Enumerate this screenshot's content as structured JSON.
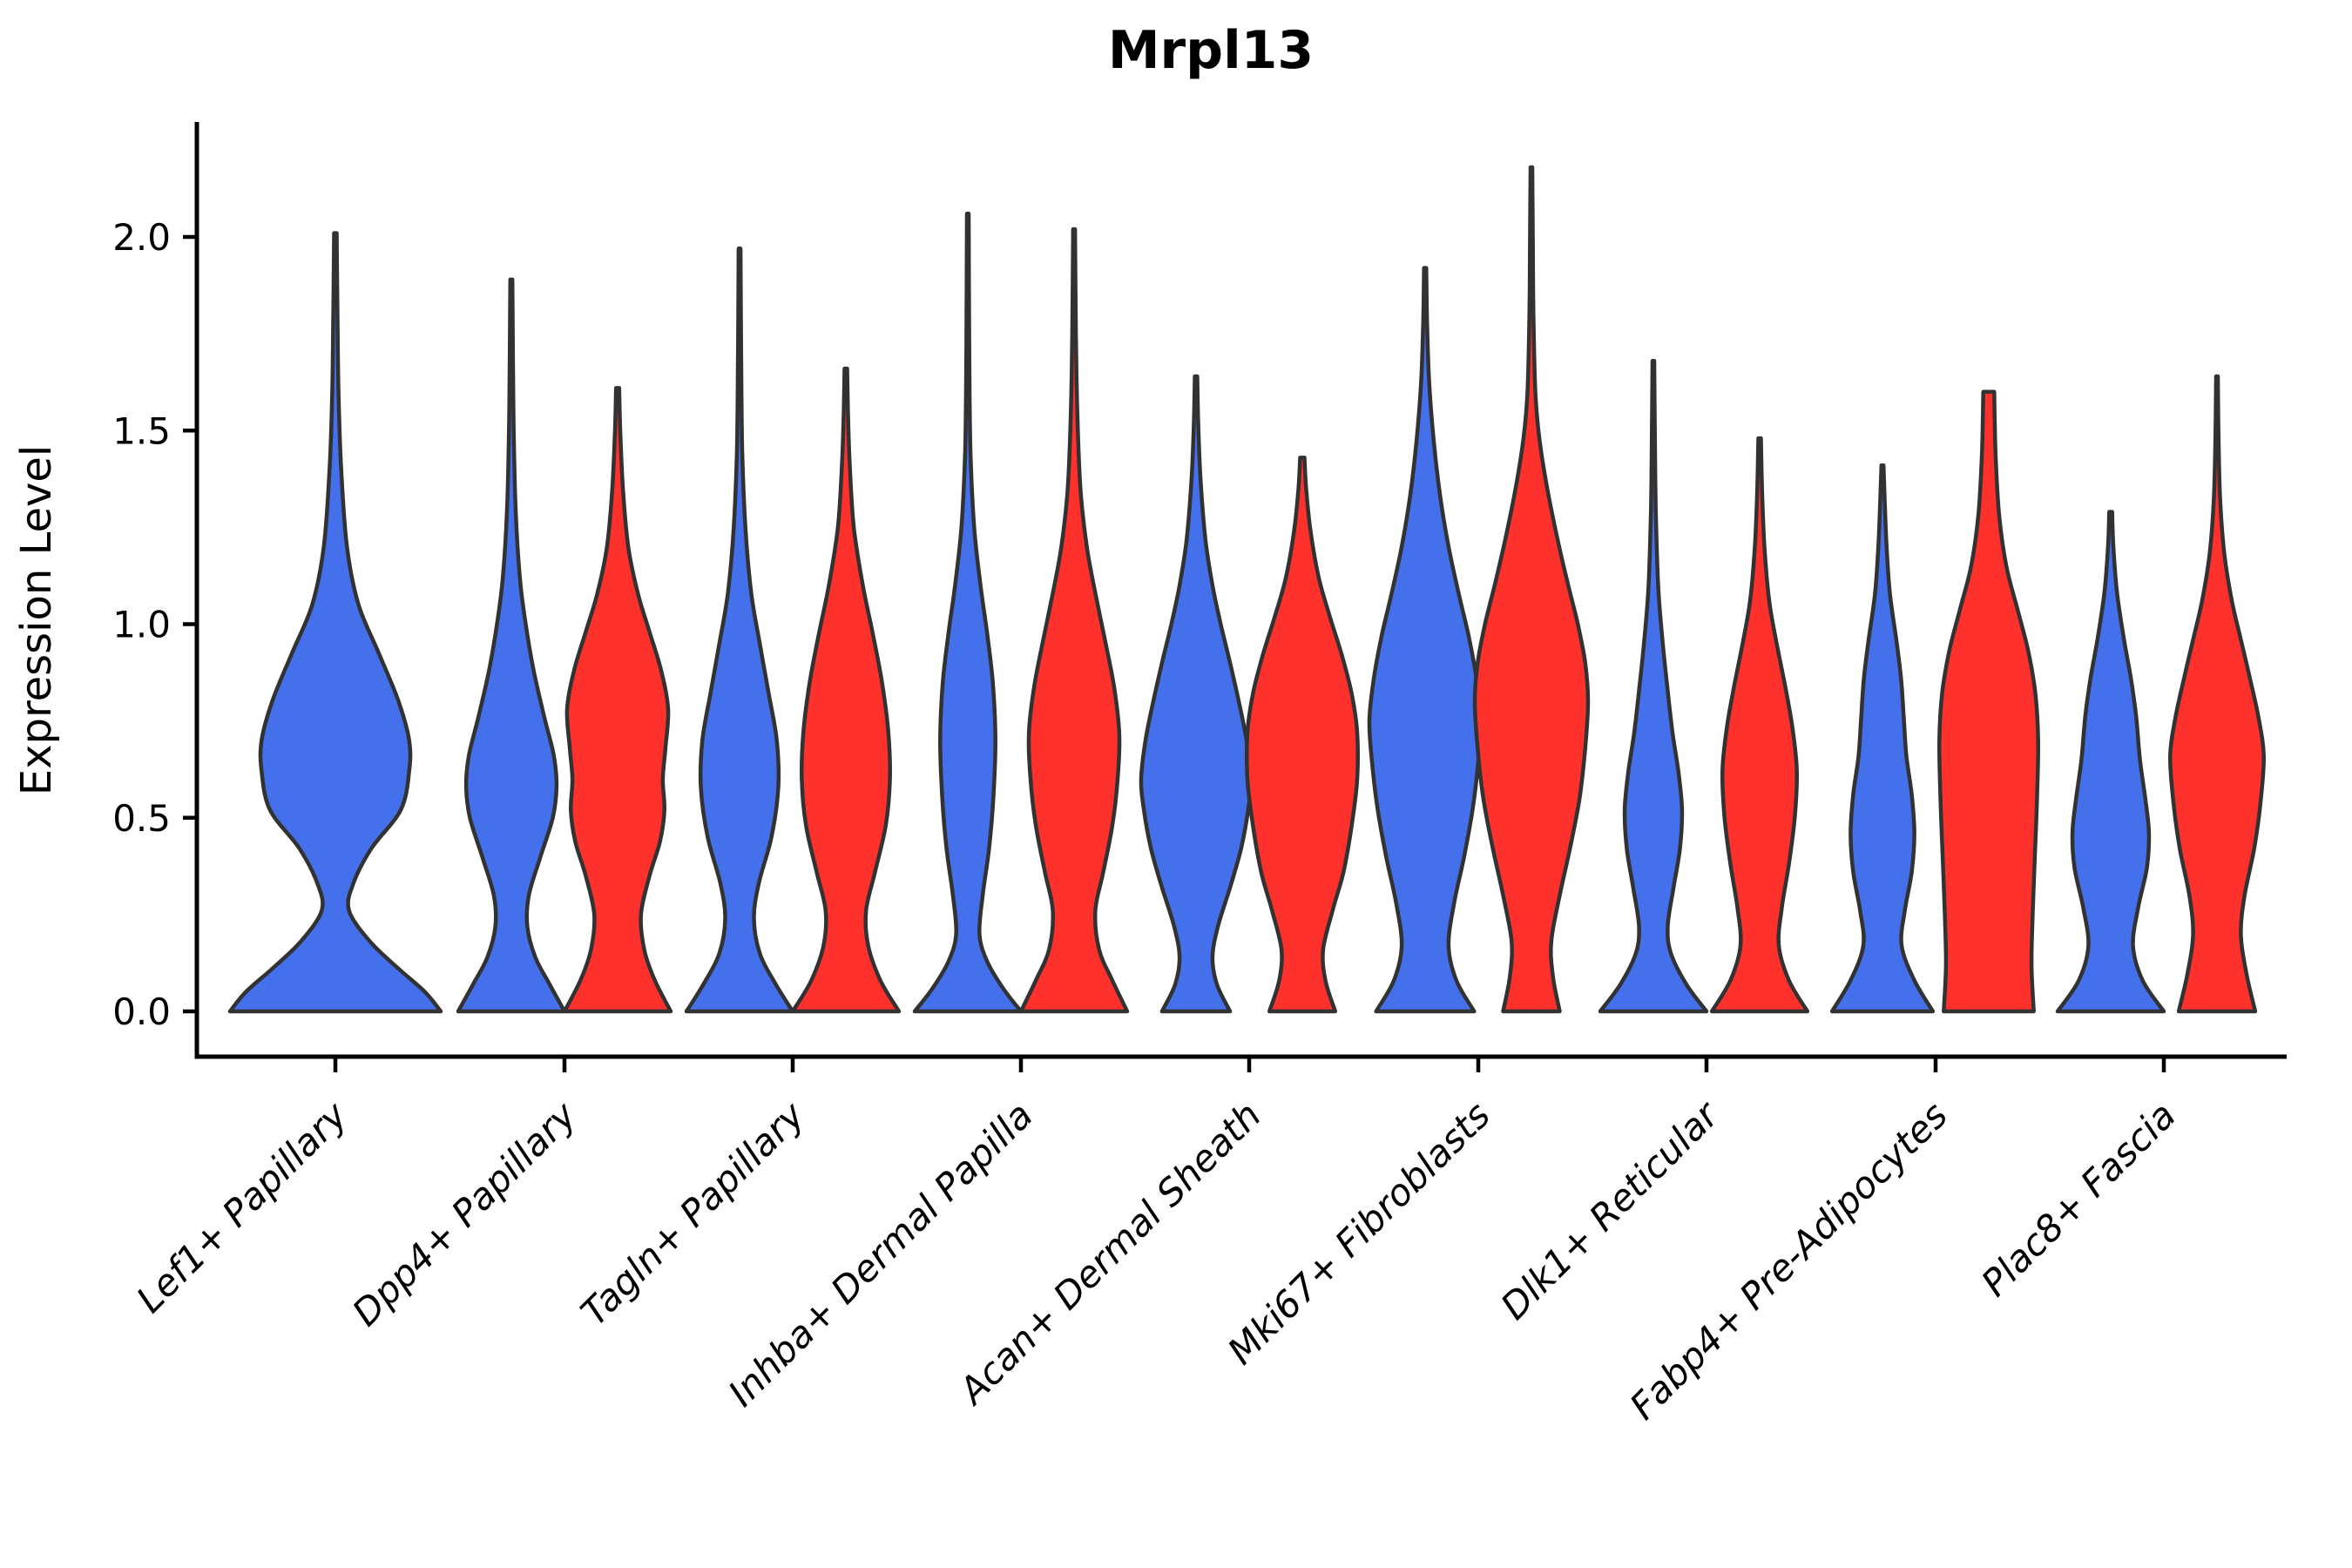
{
  "title": "Mrpl13",
  "axes": {
    "ylabel": "Expression Level",
    "ytick_labels": [
      "0.0",
      "0.5",
      "1.0",
      "1.5",
      "2.0"
    ]
  },
  "colors": {
    "series_blue": "#4470EB",
    "series_red": "#FF312D",
    "violin_outline": "#323232",
    "axis_line": "#000000",
    "text": "#000000",
    "background": "#ffffff"
  },
  "chart_data": {
    "type": "violin",
    "title": "Mrpl13",
    "xlabel": "",
    "ylabel": "Expression Level",
    "ylim": [
      0,
      2.3
    ],
    "yticks": [
      0.0,
      0.5,
      1.0,
      1.5,
      2.0
    ],
    "grid": false,
    "legend": "none",
    "categories": [
      "Lef1+ Papillary",
      "Dpp4+ Papillary",
      "Tagln+ Papillary",
      "Inhba+ Dermal Papilla",
      "Acan+ Dermal Sheath",
      "Mki67+ Fibroblasts",
      "Dlk1+ Reticular",
      "Fabp4+ Pre-Adipocytes",
      "Plac8+ Fascia"
    ],
    "series": [
      {
        "name": "group-blue",
        "color": "#4470EB"
      },
      {
        "name": "group-red",
        "color": "#FF312D"
      }
    ],
    "violins": [
      {
        "category_index": 0,
        "series": 0,
        "solo": true,
        "peak_expression": 2.01,
        "hw": 121,
        "profile": [
          [
            0,
            1.0
          ],
          [
            0.05,
            0.85
          ],
          [
            0.11,
            0.6
          ],
          [
            0.18,
            0.33
          ],
          [
            0.26,
            0.13
          ],
          [
            0.33,
            0.17
          ],
          [
            0.42,
            0.34
          ],
          [
            0.52,
            0.62
          ],
          [
            0.62,
            0.7
          ],
          [
            0.7,
            0.7
          ],
          [
            0.8,
            0.6
          ],
          [
            0.92,
            0.42
          ],
          [
            1.05,
            0.22
          ],
          [
            1.2,
            0.11
          ],
          [
            1.4,
            0.055
          ],
          [
            1.6,
            0.03
          ],
          [
            1.8,
            0.02
          ],
          [
            2.01,
            0.012
          ]
        ]
      },
      {
        "category_index": 1,
        "series": 0,
        "solo": false,
        "peak_expression": 1.89,
        "hw": 61,
        "profile": [
          [
            0,
            1.0
          ],
          [
            0.07,
            0.72
          ],
          [
            0.14,
            0.45
          ],
          [
            0.22,
            0.3
          ],
          [
            0.3,
            0.33
          ],
          [
            0.4,
            0.55
          ],
          [
            0.5,
            0.78
          ],
          [
            0.58,
            0.85
          ],
          [
            0.66,
            0.8
          ],
          [
            0.76,
            0.62
          ],
          [
            0.88,
            0.42
          ],
          [
            1.0,
            0.27
          ],
          [
            1.12,
            0.16
          ],
          [
            1.3,
            0.08
          ],
          [
            1.5,
            0.045
          ],
          [
            1.7,
            0.03
          ],
          [
            1.89,
            0.02
          ]
        ]
      },
      {
        "category_index": 1,
        "series": 1,
        "solo": false,
        "peak_expression": 1.61,
        "hw": 61,
        "profile": [
          [
            0,
            1.0
          ],
          [
            0.08,
            0.7
          ],
          [
            0.16,
            0.5
          ],
          [
            0.25,
            0.44
          ],
          [
            0.35,
            0.6
          ],
          [
            0.44,
            0.8
          ],
          [
            0.52,
            0.88
          ],
          [
            0.6,
            0.85
          ],
          [
            0.68,
            0.9
          ],
          [
            0.78,
            0.95
          ],
          [
            0.88,
            0.82
          ],
          [
            0.98,
            0.6
          ],
          [
            1.08,
            0.38
          ],
          [
            1.2,
            0.2
          ],
          [
            1.35,
            0.1
          ],
          [
            1.5,
            0.05
          ],
          [
            1.61,
            0.03
          ]
        ]
      },
      {
        "category_index": 2,
        "series": 0,
        "solo": false,
        "peak_expression": 1.97,
        "hw": 61,
        "profile": [
          [
            0,
            1.0
          ],
          [
            0.07,
            0.68
          ],
          [
            0.15,
            0.38
          ],
          [
            0.24,
            0.27
          ],
          [
            0.33,
            0.36
          ],
          [
            0.45,
            0.6
          ],
          [
            0.58,
            0.73
          ],
          [
            0.7,
            0.7
          ],
          [
            0.82,
            0.55
          ],
          [
            0.95,
            0.38
          ],
          [
            1.08,
            0.22
          ],
          [
            1.25,
            0.11
          ],
          [
            1.45,
            0.05
          ],
          [
            1.7,
            0.03
          ],
          [
            1.97,
            0.018
          ]
        ]
      },
      {
        "category_index": 2,
        "series": 1,
        "solo": false,
        "peak_expression": 1.66,
        "hw": 61,
        "profile": [
          [
            0,
            1.0
          ],
          [
            0.08,
            0.65
          ],
          [
            0.17,
            0.42
          ],
          [
            0.26,
            0.38
          ],
          [
            0.36,
            0.55
          ],
          [
            0.48,
            0.75
          ],
          [
            0.6,
            0.83
          ],
          [
            0.72,
            0.8
          ],
          [
            0.85,
            0.68
          ],
          [
            0.98,
            0.5
          ],
          [
            1.1,
            0.32
          ],
          [
            1.25,
            0.15
          ],
          [
            1.42,
            0.07
          ],
          [
            1.55,
            0.04
          ],
          [
            1.66,
            0.025
          ]
        ]
      },
      {
        "category_index": 3,
        "series": 0,
        "solo": false,
        "peak_expression": 2.06,
        "hw": 61,
        "profile": [
          [
            0,
            1.0
          ],
          [
            0.06,
            0.66
          ],
          [
            0.13,
            0.36
          ],
          [
            0.2,
            0.22
          ],
          [
            0.3,
            0.28
          ],
          [
            0.42,
            0.4
          ],
          [
            0.55,
            0.48
          ],
          [
            0.7,
            0.52
          ],
          [
            0.85,
            0.47
          ],
          [
            0.98,
            0.36
          ],
          [
            1.1,
            0.24
          ],
          [
            1.25,
            0.12
          ],
          [
            1.45,
            0.05
          ],
          [
            1.7,
            0.028
          ],
          [
            2.06,
            0.016
          ]
        ]
      },
      {
        "category_index": 3,
        "series": 1,
        "solo": false,
        "peak_expression": 2.02,
        "hw": 61,
        "profile": [
          [
            0,
            1.0
          ],
          [
            0.08,
            0.72
          ],
          [
            0.16,
            0.47
          ],
          [
            0.26,
            0.4
          ],
          [
            0.36,
            0.55
          ],
          [
            0.48,
            0.72
          ],
          [
            0.6,
            0.82
          ],
          [
            0.72,
            0.85
          ],
          [
            0.84,
            0.75
          ],
          [
            0.96,
            0.58
          ],
          [
            1.08,
            0.4
          ],
          [
            1.2,
            0.24
          ],
          [
            1.35,
            0.12
          ],
          [
            1.55,
            0.06
          ],
          [
            1.75,
            0.035
          ],
          [
            2.02,
            0.018
          ]
        ]
      },
      {
        "category_index": 4,
        "series": 0,
        "solo": false,
        "peak_expression": 1.64,
        "hw": 63,
        "profile": [
          [
            0,
            0.62
          ],
          [
            0.07,
            0.38
          ],
          [
            0.14,
            0.3
          ],
          [
            0.22,
            0.4
          ],
          [
            0.32,
            0.62
          ],
          [
            0.42,
            0.82
          ],
          [
            0.52,
            0.95
          ],
          [
            0.6,
            1.0
          ],
          [
            0.7,
            0.92
          ],
          [
            0.8,
            0.78
          ],
          [
            0.9,
            0.62
          ],
          [
            1.0,
            0.45
          ],
          [
            1.1,
            0.3
          ],
          [
            1.22,
            0.17
          ],
          [
            1.38,
            0.08
          ],
          [
            1.52,
            0.04
          ],
          [
            1.64,
            0.022
          ]
        ]
      },
      {
        "category_index": 4,
        "series": 1,
        "solo": false,
        "peak_expression": 1.43,
        "hw": 63,
        "profile": [
          [
            0,
            0.6
          ],
          [
            0.08,
            0.42
          ],
          [
            0.16,
            0.38
          ],
          [
            0.26,
            0.55
          ],
          [
            0.36,
            0.75
          ],
          [
            0.48,
            0.9
          ],
          [
            0.6,
            1.0
          ],
          [
            0.72,
            1.0
          ],
          [
            0.82,
            0.9
          ],
          [
            0.92,
            0.72
          ],
          [
            1.02,
            0.5
          ],
          [
            1.12,
            0.3
          ],
          [
            1.24,
            0.15
          ],
          [
            1.35,
            0.07
          ],
          [
            1.43,
            0.04
          ]
        ]
      },
      {
        "category_index": 5,
        "series": 0,
        "solo": false,
        "peak_expression": 1.92,
        "hw": 64,
        "profile": [
          [
            0,
            0.88
          ],
          [
            0.08,
            0.56
          ],
          [
            0.17,
            0.42
          ],
          [
            0.28,
            0.52
          ],
          [
            0.4,
            0.7
          ],
          [
            0.52,
            0.85
          ],
          [
            0.64,
            0.95
          ],
          [
            0.75,
            1.0
          ],
          [
            0.86,
            0.92
          ],
          [
            0.97,
            0.78
          ],
          [
            1.08,
            0.6
          ],
          [
            1.2,
            0.42
          ],
          [
            1.33,
            0.27
          ],
          [
            1.48,
            0.15
          ],
          [
            1.63,
            0.07
          ],
          [
            1.78,
            0.035
          ],
          [
            1.92,
            0.02
          ]
        ]
      },
      {
        "category_index": 5,
        "series": 1,
        "solo": false,
        "peak_expression": 2.18,
        "hw": 65,
        "profile": [
          [
            0,
            0.5
          ],
          [
            0.09,
            0.38
          ],
          [
            0.18,
            0.35
          ],
          [
            0.3,
            0.5
          ],
          [
            0.42,
            0.68
          ],
          [
            0.55,
            0.85
          ],
          [
            0.68,
            0.95
          ],
          [
            0.8,
            1.0
          ],
          [
            0.9,
            0.95
          ],
          [
            1.0,
            0.82
          ],
          [
            1.1,
            0.65
          ],
          [
            1.22,
            0.46
          ],
          [
            1.35,
            0.28
          ],
          [
            1.48,
            0.14
          ],
          [
            1.6,
            0.07
          ],
          [
            1.8,
            0.035
          ],
          [
            2.0,
            0.025
          ],
          [
            2.18,
            0.016
          ]
        ]
      },
      {
        "category_index": 6,
        "series": 0,
        "solo": false,
        "peak_expression": 1.68,
        "hw": 61,
        "profile": [
          [
            0,
            1.0
          ],
          [
            0.07,
            0.62
          ],
          [
            0.15,
            0.33
          ],
          [
            0.22,
            0.27
          ],
          [
            0.32,
            0.38
          ],
          [
            0.42,
            0.5
          ],
          [
            0.52,
            0.54
          ],
          [
            0.62,
            0.47
          ],
          [
            0.72,
            0.36
          ],
          [
            0.84,
            0.26
          ],
          [
            0.96,
            0.17
          ],
          [
            1.1,
            0.09
          ],
          [
            1.3,
            0.045
          ],
          [
            1.5,
            0.028
          ],
          [
            1.68,
            0.016
          ]
        ]
      },
      {
        "category_index": 6,
        "series": 1,
        "solo": false,
        "peak_expression": 1.48,
        "hw": 61,
        "profile": [
          [
            0,
            0.9
          ],
          [
            0.08,
            0.55
          ],
          [
            0.17,
            0.36
          ],
          [
            0.27,
            0.42
          ],
          [
            0.38,
            0.55
          ],
          [
            0.5,
            0.66
          ],
          [
            0.62,
            0.7
          ],
          [
            0.73,
            0.62
          ],
          [
            0.84,
            0.48
          ],
          [
            0.95,
            0.32
          ],
          [
            1.06,
            0.18
          ],
          [
            1.2,
            0.09
          ],
          [
            1.35,
            0.045
          ],
          [
            1.48,
            0.025
          ]
        ]
      },
      {
        "category_index": 7,
        "series": 0,
        "solo": false,
        "peak_expression": 1.41,
        "hw": 61,
        "profile": [
          [
            0,
            0.95
          ],
          [
            0.08,
            0.6
          ],
          [
            0.17,
            0.36
          ],
          [
            0.26,
            0.42
          ],
          [
            0.36,
            0.55
          ],
          [
            0.46,
            0.6
          ],
          [
            0.56,
            0.55
          ],
          [
            0.66,
            0.45
          ],
          [
            0.76,
            0.4
          ],
          [
            0.86,
            0.35
          ],
          [
            0.96,
            0.26
          ],
          [
            1.08,
            0.14
          ],
          [
            1.22,
            0.07
          ],
          [
            1.41,
            0.02
          ]
        ]
      },
      {
        "category_index": 7,
        "series": 1,
        "solo": false,
        "peak_expression": 1.6,
        "hw": 63,
        "flat_top": true,
        "profile": [
          [
            0,
            0.82
          ],
          [
            0.12,
            0.78
          ],
          [
            0.25,
            0.8
          ],
          [
            0.4,
            0.84
          ],
          [
            0.55,
            0.88
          ],
          [
            0.7,
            0.9
          ],
          [
            0.82,
            0.85
          ],
          [
            0.93,
            0.72
          ],
          [
            1.04,
            0.52
          ],
          [
            1.15,
            0.32
          ],
          [
            1.28,
            0.19
          ],
          [
            1.42,
            0.13
          ],
          [
            1.52,
            0.11
          ],
          [
            1.6,
            0.1
          ]
        ]
      },
      {
        "category_index": 8,
        "series": 0,
        "solo": false,
        "peak_expression": 1.29,
        "hw": 61,
        "profile": [
          [
            0,
            1.0
          ],
          [
            0.08,
            0.6
          ],
          [
            0.17,
            0.42
          ],
          [
            0.27,
            0.52
          ],
          [
            0.37,
            0.68
          ],
          [
            0.46,
            0.72
          ],
          [
            0.55,
            0.65
          ],
          [
            0.65,
            0.55
          ],
          [
            0.76,
            0.48
          ],
          [
            0.86,
            0.38
          ],
          [
            0.96,
            0.25
          ],
          [
            1.08,
            0.12
          ],
          [
            1.2,
            0.05
          ],
          [
            1.29,
            0.028
          ]
        ]
      },
      {
        "category_index": 8,
        "series": 1,
        "solo": false,
        "peak_expression": 1.64,
        "hw": 61,
        "profile": [
          [
            0,
            0.72
          ],
          [
            0.1,
            0.55
          ],
          [
            0.2,
            0.45
          ],
          [
            0.3,
            0.52
          ],
          [
            0.42,
            0.7
          ],
          [
            0.54,
            0.82
          ],
          [
            0.66,
            0.88
          ],
          [
            0.76,
            0.78
          ],
          [
            0.86,
            0.62
          ],
          [
            0.96,
            0.45
          ],
          [
            1.06,
            0.28
          ],
          [
            1.18,
            0.14
          ],
          [
            1.32,
            0.06
          ],
          [
            1.48,
            0.03
          ],
          [
            1.64,
            0.016
          ]
        ]
      }
    ]
  }
}
